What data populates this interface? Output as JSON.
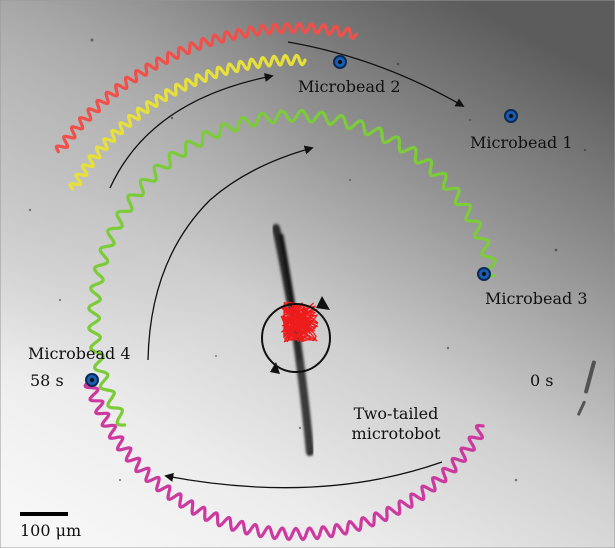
{
  "image": {
    "labels": {
      "microbead_1": "Microbead 1",
      "microbead_2": "Microbead 2",
      "microbead_3": "Microbead 3",
      "microbead_4": "Microbead 4",
      "time_start": "0 s",
      "time_end": "58 s",
      "robot_line1": "Two-tailed",
      "robot_line2": "microtobot",
      "scale_bar": "100 μm"
    },
    "colors": {
      "microbead_1_trajectory": "#f0504a",
      "microbead_2_trajectory": "#e8e03a",
      "microbead_3_trajectory": "#7ccc3a",
      "microbead_4_trajectory": "#cc3aa0",
      "robot_trajectory": "#ee1c1c",
      "bead_fill": "#1a5fb4",
      "arrows": "#111111"
    }
  }
}
